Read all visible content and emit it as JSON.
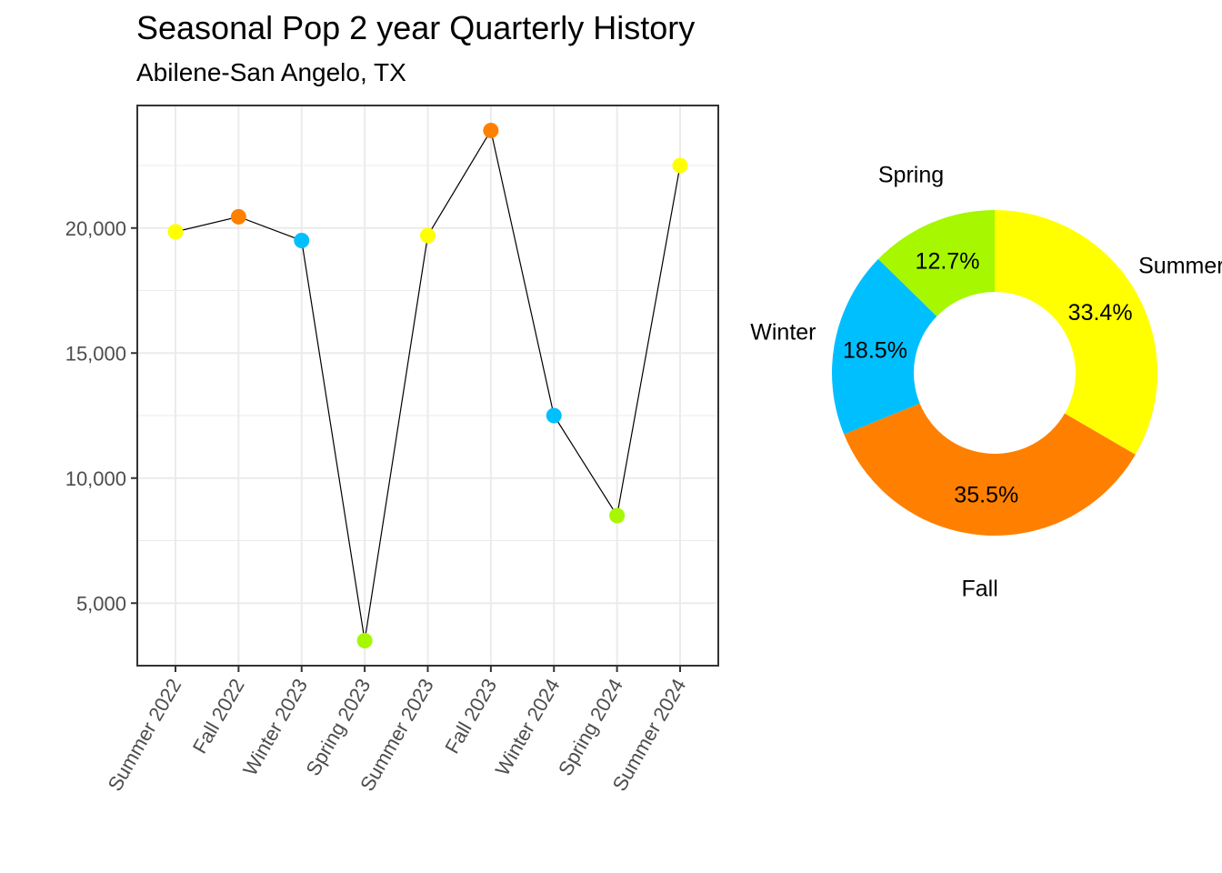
{
  "title": "Seasonal Pop 2 year Quarterly History",
  "subtitle": "Abilene-San Angelo, TX",
  "colors": {
    "Summer": "#FFFF00",
    "Fall": "#FF8000",
    "Winter": "#00BFFF",
    "Spring": "#A6F700",
    "line": "#000000",
    "grid": "#EBEBEB",
    "panel_border": "#333333",
    "axis_text": "#4D4D4D"
  },
  "chart_data": [
    {
      "type": "line",
      "categories": [
        "Summer 2022",
        "Fall 2022",
        "Winter 2023",
        "Spring 2023",
        "Summer 2023",
        "Fall 2023",
        "Winter 2024",
        "Spring 2024",
        "Summer 2024"
      ],
      "seasons": [
        "Summer",
        "Fall",
        "Winter",
        "Spring",
        "Summer",
        "Fall",
        "Winter",
        "Spring",
        "Summer"
      ],
      "values": [
        19850,
        20450,
        19500,
        3500,
        19700,
        23900,
        12500,
        8500,
        22500
      ],
      "yticks": [
        5000,
        10000,
        15000,
        20000
      ],
      "ytick_labels": [
        "5,000",
        "10,000",
        "15,000",
        "20,000"
      ],
      "ylim": [
        2500,
        24900
      ],
      "xlabel": "",
      "ylabel": "",
      "grid": true,
      "legend": "none"
    },
    {
      "type": "pie",
      "variant": "donut",
      "slices": [
        {
          "label": "Summer",
          "value": 33.4,
          "pct_label": "33.4%"
        },
        {
          "label": "Fall",
          "value": 35.5,
          "pct_label": "35.5%"
        },
        {
          "label": "Winter",
          "value": 18.5,
          "pct_label": "18.5%"
        },
        {
          "label": "Spring",
          "value": 12.7,
          "pct_label": "12.7%"
        }
      ]
    }
  ]
}
